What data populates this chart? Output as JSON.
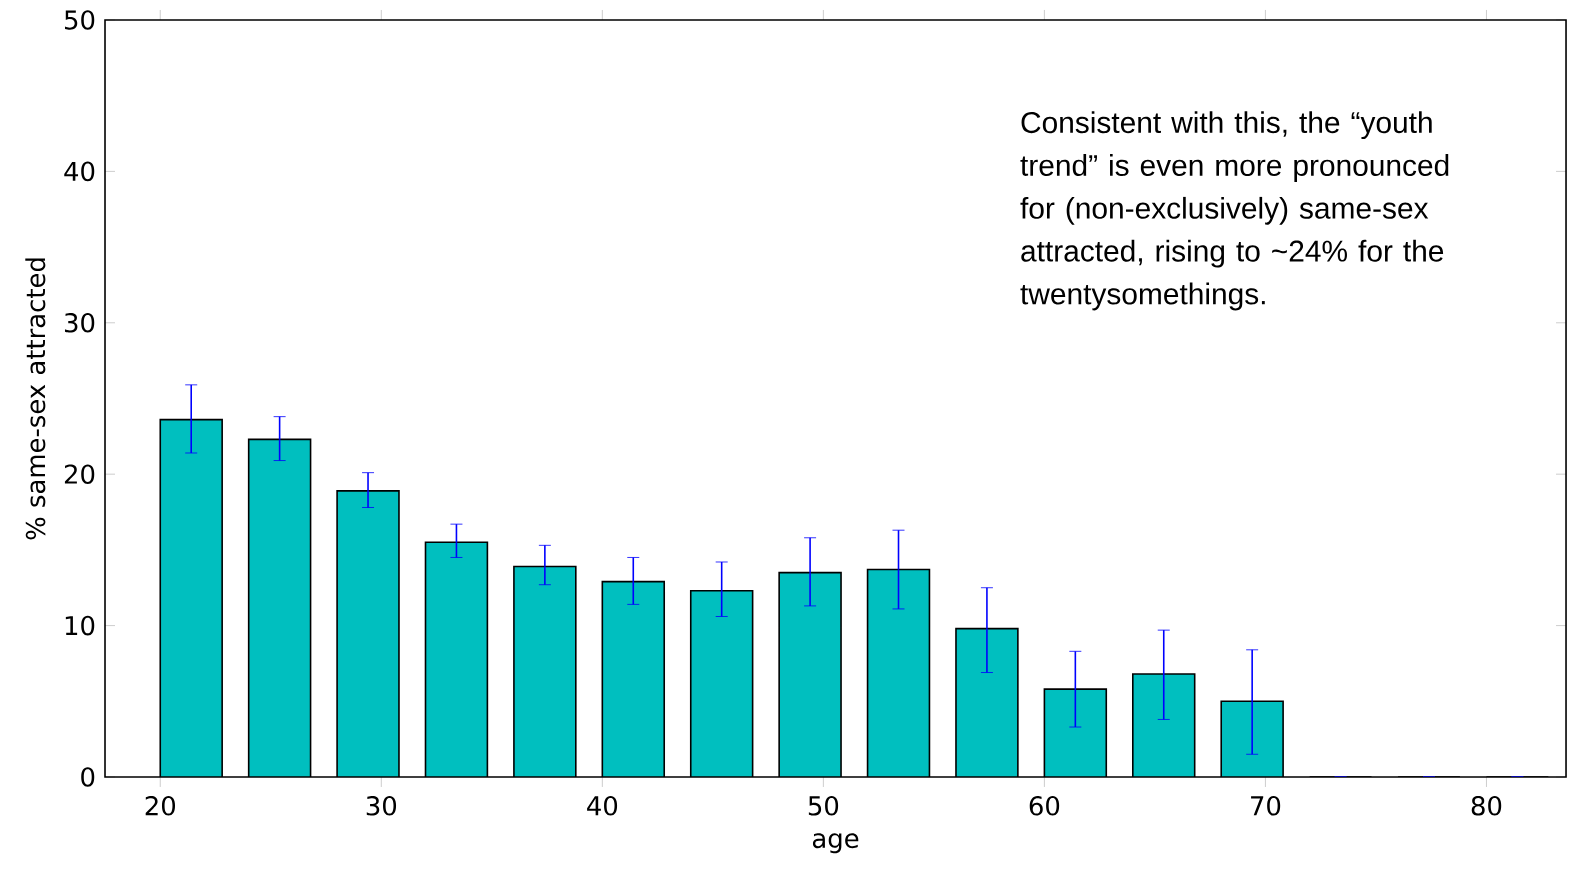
{
  "chart_data": {
    "type": "bar",
    "x": [
      21.4,
      25.4,
      29.4,
      33.4,
      37.4,
      41.4,
      45.4,
      49.4,
      53.4,
      57.4,
      61.4,
      65.4,
      69.4,
      73.4,
      77.4,
      81.4
    ],
    "values": [
      23.6,
      22.3,
      18.9,
      15.5,
      13.9,
      12.9,
      12.3,
      13.5,
      13.7,
      9.8,
      5.8,
      6.8,
      5.0,
      0,
      0,
      0
    ],
    "errors": [
      [
        21.4,
        25.9
      ],
      [
        20.9,
        23.8
      ],
      [
        17.8,
        20.1
      ],
      [
        14.5,
        16.7
      ],
      [
        12.7,
        15.3
      ],
      [
        11.4,
        14.5
      ],
      [
        10.6,
        14.2
      ],
      [
        11.3,
        15.8
      ],
      [
        11.1,
        16.3
      ],
      [
        6.9,
        12.5
      ],
      [
        3.3,
        8.3
      ],
      [
        3.8,
        9.7
      ],
      [
        1.5,
        8.4
      ],
      null,
      null,
      null
    ],
    "color": "#00bfbf",
    "xlabel": "age",
    "ylabel": "% same-sex attracted",
    "xlim": [
      17.5,
      83.6
    ],
    "ylim": [
      0,
      50
    ],
    "xticks": [
      20,
      30,
      40,
      50,
      60,
      70,
      80
    ],
    "yticks": [
      0,
      10,
      20,
      30,
      40,
      50
    ],
    "annotations": [
      "Consistent with this, the “youth trend” is even more pronounced for (non-exclusively) same-sex attracted, rising to ~24% for the twentysomethings."
    ]
  }
}
